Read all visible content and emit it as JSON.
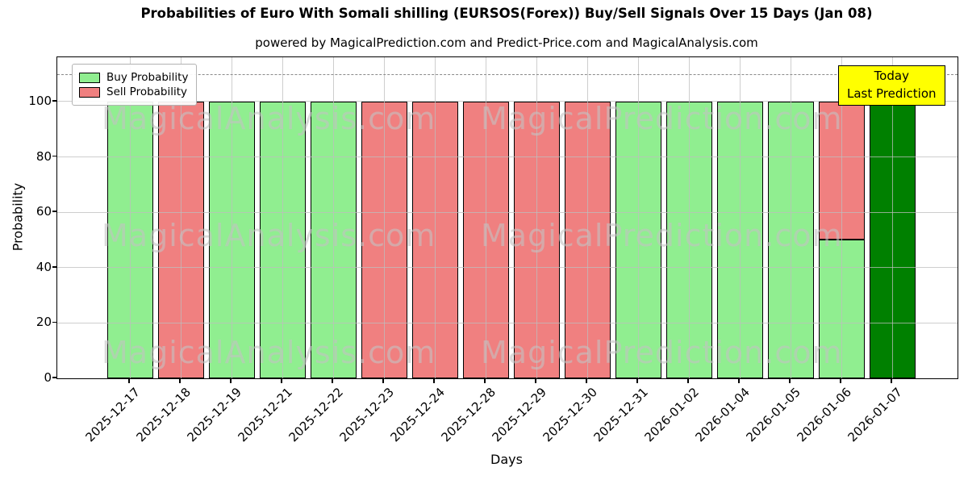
{
  "title": "Probabilities of Euro With Somali shilling (EURSOS(Forex)) Buy/Sell Signals Over 15 Days (Jan 08)",
  "subtitle": "powered by MagicalPrediction.com and Predict-Price.com and MagicalAnalysis.com",
  "axes": {
    "xlabel": "Days",
    "ylabel": "Probability",
    "yticks": [
      0,
      20,
      40,
      60,
      80,
      100
    ],
    "ylim": [
      0,
      116
    ],
    "dashed_line_value": 110,
    "grid": "on"
  },
  "legend": {
    "position": "upper left",
    "items": [
      {
        "label": "Buy Probability",
        "color": "#90ee90"
      },
      {
        "label": "Sell Probability",
        "color": "#f08080"
      }
    ]
  },
  "annotation_box": {
    "line1": "Today",
    "line2": "Last Prediction",
    "bg_color": "#ffff00"
  },
  "watermarks": [
    "MagicalAnalysis.com",
    "MagicalPrediction.com"
  ],
  "colors": {
    "buy": "#90ee90",
    "sell": "#f08080",
    "today_bar": "#008000",
    "bar_edge": "#000000"
  },
  "chart_data": {
    "type": "bar",
    "stacked": true,
    "title": "Probabilities of Euro With Somali shilling (EURSOS(Forex)) Buy/Sell Signals Over 15 Days (Jan 08)",
    "xlabel": "Days",
    "ylabel": "Probability",
    "ylim": [
      0,
      116
    ],
    "categories": [
      "2025-12-17",
      "2025-12-18",
      "2025-12-19",
      "2025-12-21",
      "2025-12-22",
      "2025-12-23",
      "2025-12-24",
      "2025-12-28",
      "2025-12-29",
      "2025-12-30",
      "2025-12-31",
      "2026-01-02",
      "2026-01-04",
      "2026-01-05",
      "2026-01-06",
      "2026-01-07"
    ],
    "series": [
      {
        "name": "Buy Probability",
        "color": "#90ee90",
        "values": [
          100,
          0,
          100,
          100,
          100,
          0,
          0,
          0,
          0,
          0,
          100,
          100,
          100,
          100,
          50,
          0
        ]
      },
      {
        "name": "Sell Probability",
        "color": "#f08080",
        "values": [
          0,
          100,
          0,
          0,
          0,
          100,
          100,
          100,
          100,
          100,
          0,
          0,
          0,
          0,
          50,
          0
        ]
      },
      {
        "name": "Today / Last Prediction",
        "color": "#008000",
        "values": [
          0,
          0,
          0,
          0,
          0,
          0,
          0,
          0,
          0,
          0,
          0,
          0,
          0,
          0,
          0,
          100
        ]
      }
    ]
  }
}
